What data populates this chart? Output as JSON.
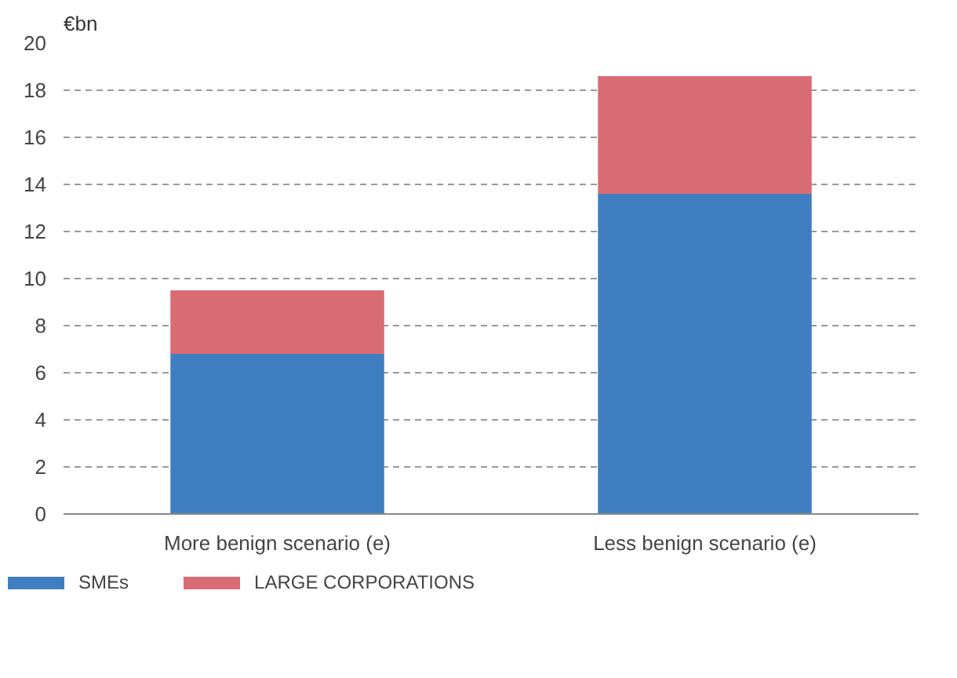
{
  "chart_data": {
    "type": "bar",
    "ylabel": "€bn",
    "categories": [
      "More benign scenario (e)",
      "Less benign scenario (e)"
    ],
    "series": [
      {
        "name": "SMEs",
        "color": "#3f7fc1",
        "values": [
          6.8,
          13.6
        ]
      },
      {
        "name": "LARGE CORPORATIONS",
        "color": "#d96b74",
        "values": [
          2.7,
          5.0
        ]
      }
    ],
    "stacked": true,
    "ylim": [
      0,
      20
    ],
    "yticks": [
      0,
      2,
      4,
      6,
      8,
      10,
      12,
      14,
      16,
      18,
      20
    ],
    "grid": "y",
    "legend": "bottom"
  }
}
